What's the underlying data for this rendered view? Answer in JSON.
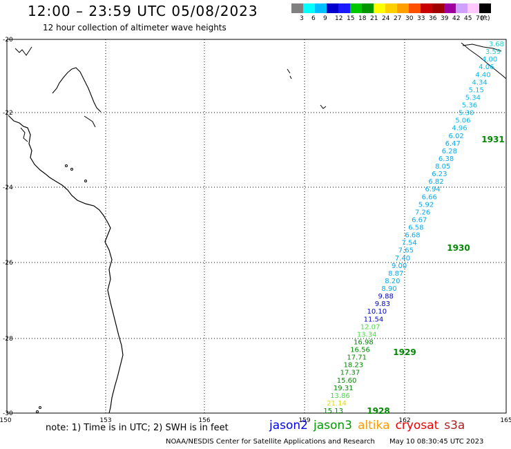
{
  "header": {
    "title": "12:00 – 23:59 UTC 05/08/2023",
    "subtitle": "12 hour collection of altimeter wave heights"
  },
  "legend": {
    "colors": [
      "#808080",
      "#00ffff",
      "#00bfff",
      "#0000cd",
      "#1a1aff",
      "#00c800",
      "#009600",
      "#ffff00",
      "#ffd000",
      "#ffa000",
      "#ff5000",
      "#c80000",
      "#a00000",
      "#a000a0",
      "#d0a0ff",
      "#ffc8ff",
      "#000000"
    ],
    "labels": [
      "3",
      "6",
      "9",
      "12",
      "15",
      "18",
      "21",
      "24",
      "27",
      "30",
      "33",
      "36",
      "39",
      "42",
      "45",
      "70",
      "(ft)"
    ]
  },
  "axes": {
    "lat_labels": [
      "-20",
      "-22",
      "-24",
      "-26",
      "-28",
      "-30"
    ],
    "lon_labels": [
      "150",
      "153",
      "156",
      "159",
      "162",
      "165"
    ]
  },
  "track": {
    "points": [
      {
        "v": "3.68",
        "c": "#22cccc"
      },
      {
        "v": "3.59",
        "c": "#22cccc"
      },
      {
        "v": "4.00",
        "c": "#00bbee"
      },
      {
        "v": "4.06",
        "c": "#00bbee"
      },
      {
        "v": "4.40",
        "c": "#00bbee"
      },
      {
        "v": "4.34",
        "c": "#00bbee"
      },
      {
        "v": "5.15",
        "c": "#00bbee"
      },
      {
        "v": "5.34",
        "c": "#00bbee"
      },
      {
        "v": "5.36",
        "c": "#00bbee"
      },
      {
        "v": "5.30",
        "c": "#00bbee"
      },
      {
        "v": "5.06",
        "c": "#00bbee"
      },
      {
        "v": "4.96",
        "c": "#00bbee"
      },
      {
        "v": "6.02",
        "c": "#00aaee"
      },
      {
        "v": "6.47",
        "c": "#00aaee"
      },
      {
        "v": "6.28",
        "c": "#00aaee"
      },
      {
        "v": "6.38",
        "c": "#00aaee"
      },
      {
        "v": "8.05",
        "c": "#00aaee"
      },
      {
        "v": "6.23",
        "c": "#00aaee"
      },
      {
        "v": "6.82",
        "c": "#00aaee"
      },
      {
        "v": "6.94",
        "c": "#00aaee"
      },
      {
        "v": "6.66",
        "c": "#00aaee"
      },
      {
        "v": "5.92",
        "c": "#00aaee"
      },
      {
        "v": "7.26",
        "c": "#00aaee"
      },
      {
        "v": "6.67",
        "c": "#00aaee"
      },
      {
        "v": "6.58",
        "c": "#00aaee"
      },
      {
        "v": "6.68",
        "c": "#00aaee"
      },
      {
        "v": "7.54",
        "c": "#00aaee"
      },
      {
        "v": "7.65",
        "c": "#00aaee"
      },
      {
        "v": "7.40",
        "c": "#00aaee"
      },
      {
        "v": "9.00",
        "c": "#00aaee"
      },
      {
        "v": "8.87",
        "c": "#00aaee"
      },
      {
        "v": "8.20",
        "c": "#00aaee"
      },
      {
        "v": "8.90",
        "c": "#00aaee"
      },
      {
        "v": "9.88",
        "c": "#0000cc"
      },
      {
        "v": "9.83",
        "c": "#0000cc"
      },
      {
        "v": "10.10",
        "c": "#0000cc"
      },
      {
        "v": "11.54",
        "c": "#0000cc"
      },
      {
        "v": "12.07",
        "c": "#44dd44"
      },
      {
        "v": "13.34",
        "c": "#44dd44"
      },
      {
        "v": "16.98",
        "c": "#008800"
      },
      {
        "v": "16.56",
        "c": "#008800"
      },
      {
        "v": "17.71",
        "c": "#008800"
      },
      {
        "v": "18.23",
        "c": "#008800"
      },
      {
        "v": "17.37",
        "c": "#008800"
      },
      {
        "v": "15.60",
        "c": "#008800"
      },
      {
        "v": "19.31",
        "c": "#008800"
      },
      {
        "v": "13.86",
        "c": "#44dd44"
      },
      {
        "v": "21.14",
        "c": "#dddd00"
      },
      {
        "v": "15.13",
        "c": "#008800"
      }
    ],
    "time_labels": [
      {
        "t": "1931",
        "c": "#008800"
      },
      {
        "t": "1930",
        "c": "#008800"
      },
      {
        "t": "1929",
        "c": "#008800"
      },
      {
        "t": "1928",
        "c": "#008800"
      }
    ]
  },
  "note": "note:  1) Time is in UTC;  2) SWH is in feet",
  "satellites": [
    {
      "name": "jason2",
      "color": "#0000ee"
    },
    {
      "name": "jason3",
      "color": "#009900"
    },
    {
      "name": "altika",
      "color": "#ff9900"
    },
    {
      "name": "cryosat",
      "color": "#ee0000"
    },
    {
      "name": "s3a",
      "color": "#aa2222"
    }
  ],
  "footer": {
    "credit": "NOAA/NESDIS Center for Satellite Applications and Research",
    "timestamp": "May 10 08:30:45 UTC 2023"
  }
}
